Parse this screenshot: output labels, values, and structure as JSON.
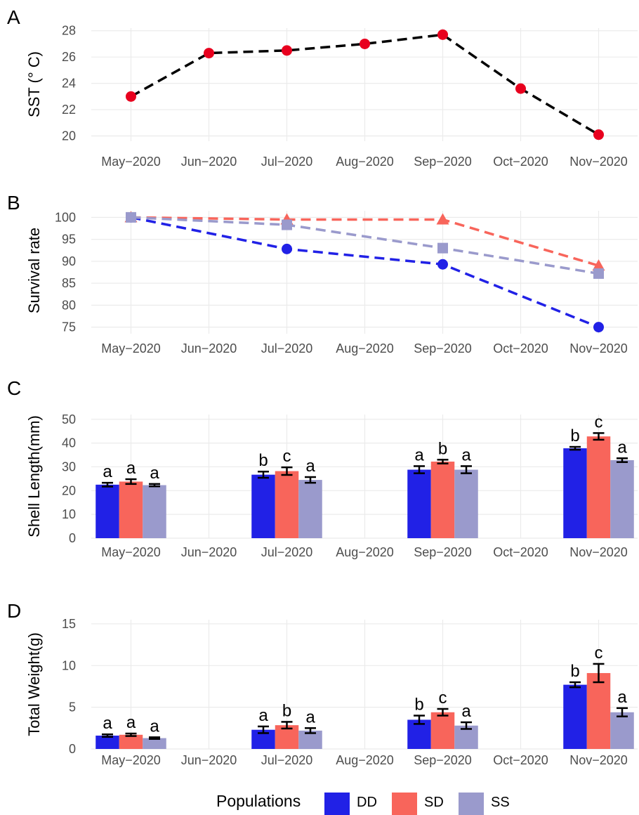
{
  "months": [
    "May−2020",
    "Jun−2020",
    "Jul−2020",
    "Aug−2020",
    "Sep−2020",
    "Oct−2020",
    "Nov−2020"
  ],
  "colors": {
    "DD": "#2121e6",
    "SD": "#f8655b",
    "SS": "#9a9acc",
    "SST_line": "#000000",
    "SST_point": "#e8001e"
  },
  "legend": {
    "title": "Populations",
    "items": [
      {
        "key": "DD",
        "label": "DD"
      },
      {
        "key": "SD",
        "label": "SD"
      },
      {
        "key": "SS",
        "label": "SS"
      }
    ]
  },
  "chart_data": [
    {
      "panel": "A",
      "type": "line",
      "ylabel": "SST (° C)",
      "xlabel": "",
      "x": [
        "May−2020",
        "Jun−2020",
        "Jul−2020",
        "Aug−2020",
        "Sep−2020",
        "Oct−2020",
        "Nov−2020"
      ],
      "values": [
        23.0,
        26.3,
        26.5,
        27.0,
        27.7,
        23.6,
        20.1
      ],
      "ylim": [
        19.6,
        28.2
      ],
      "yticks": [
        20,
        22,
        24,
        26,
        28
      ],
      "line_style": "dashed",
      "grid": true
    },
    {
      "panel": "B",
      "type": "line",
      "ylabel": "Survival rate",
      "xlabel": "",
      "x": [
        "May−2020",
        "Jul−2020",
        "Sep−2020",
        "Nov−2020"
      ],
      "ylim": [
        73.5,
        101.5
      ],
      "yticks": [
        75,
        80,
        85,
        90,
        95,
        100
      ],
      "line_style": "dashed",
      "grid": true,
      "series": [
        {
          "name": "DD",
          "marker": "circle",
          "values": [
            100,
            92.8,
            89.3,
            75.0
          ]
        },
        {
          "name": "SD",
          "marker": "triangle",
          "values": [
            100,
            99.5,
            99.5,
            89.0
          ]
        },
        {
          "name": "SS",
          "marker": "square",
          "values": [
            100,
            98.3,
            93.0,
            87.2
          ]
        }
      ]
    },
    {
      "panel": "C",
      "type": "bar",
      "ylabel": "Shell Length(mm)",
      "xlabel": "",
      "categories": [
        "May−2020",
        "Jul−2020",
        "Sep−2020",
        "Nov−2020"
      ],
      "ylim": [
        0,
        52
      ],
      "yticks": [
        0,
        10,
        20,
        30,
        40,
        50
      ],
      "grid": true,
      "series": [
        {
          "name": "DD",
          "values": [
            22.5,
            26.7,
            28.8,
            37.8
          ],
          "errors": [
            0.8,
            1.3,
            1.5,
            0.6
          ],
          "letters": [
            "a",
            "b",
            "a",
            "b"
          ]
        },
        {
          "name": "SD",
          "values": [
            23.8,
            28.2,
            32.2,
            42.8
          ],
          "errors": [
            1.0,
            1.6,
            0.8,
            1.4
          ],
          "letters": [
            "a",
            "c",
            "b",
            "c"
          ]
        },
        {
          "name": "SS",
          "values": [
            22.3,
            24.5,
            28.8,
            32.8
          ],
          "errors": [
            0.5,
            1.2,
            1.5,
            0.8
          ],
          "letters": [
            "a",
            "a",
            "a",
            "a"
          ]
        }
      ]
    },
    {
      "panel": "D",
      "type": "bar",
      "ylabel": "Total Weight(g)",
      "xlabel": "",
      "categories": [
        "May−2020",
        "Jul−2020",
        "Sep−2020",
        "Nov−2020"
      ],
      "ylim": [
        0,
        15.5
      ],
      "yticks": [
        0,
        5,
        10,
        15
      ],
      "grid": true,
      "series": [
        {
          "name": "DD",
          "values": [
            1.6,
            2.3,
            3.5,
            7.7
          ],
          "errors": [
            0.15,
            0.4,
            0.5,
            0.3
          ],
          "letters": [
            "a",
            "a",
            "b",
            "b"
          ]
        },
        {
          "name": "SD",
          "values": [
            1.7,
            2.85,
            4.4,
            9.1
          ],
          "errors": [
            0.15,
            0.4,
            0.4,
            1.1
          ],
          "letters": [
            "a",
            "b",
            "c",
            "c"
          ]
        },
        {
          "name": "SS",
          "values": [
            1.3,
            2.2,
            2.8,
            4.4
          ],
          "errors": [
            0.1,
            0.3,
            0.4,
            0.5
          ],
          "letters": [
            "a",
            "a",
            "a",
            "a"
          ]
        }
      ]
    }
  ]
}
